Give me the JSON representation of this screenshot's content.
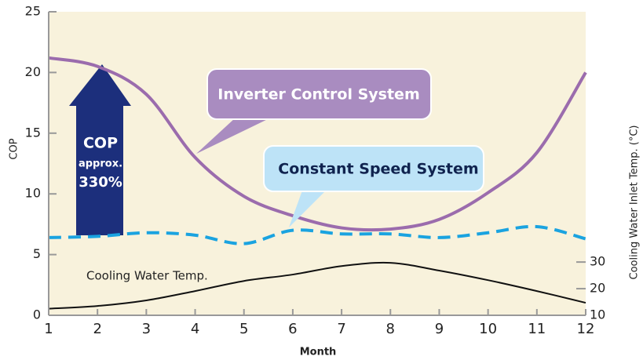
{
  "chart_data": {
    "type": "line",
    "x": [
      1,
      2,
      3,
      4,
      5,
      6,
      7,
      8,
      9,
      10,
      11,
      12
    ],
    "xlim": [
      1,
      12
    ],
    "xticks": [
      1,
      2,
      3,
      4,
      5,
      6,
      7,
      8,
      9,
      10,
      11,
      12
    ],
    "ylim": [
      0,
      25
    ],
    "yticks": [
      0,
      5,
      10,
      15,
      20,
      25
    ],
    "y2lim": [
      10,
      124
    ],
    "y2ticks": [
      10,
      20,
      30
    ],
    "xlabel": "Month",
    "ylabel": "COP",
    "y2label": "Cooling Water Inlet Temp. (°C)",
    "series": [
      {
        "name": "Inverter Control System",
        "color": "#9b6cad",
        "values": [
          21.2,
          20.5,
          18.2,
          13.0,
          9.8,
          8.2,
          7.2,
          7.1,
          7.9,
          10.1,
          13.4,
          20.0
        ]
      },
      {
        "name": "Constant Speed System",
        "color": "#1aa3e0",
        "dashed": true,
        "values": [
          6.4,
          6.5,
          6.8,
          6.6,
          5.9,
          7.0,
          6.7,
          6.7,
          6.4,
          6.8,
          7.3,
          6.3
        ]
      },
      {
        "name": "Cooling Water Temp.",
        "color": "#111111",
        "axis": "y2",
        "values": [
          12.5,
          13.5,
          15.6,
          19.1,
          22.9,
          25.3,
          28.5,
          29.7,
          26.8,
          23.2,
          19.1,
          14.7
        ]
      }
    ],
    "annotations": {
      "arrow": [
        "COP",
        "approx.",
        "330%"
      ]
    }
  }
}
